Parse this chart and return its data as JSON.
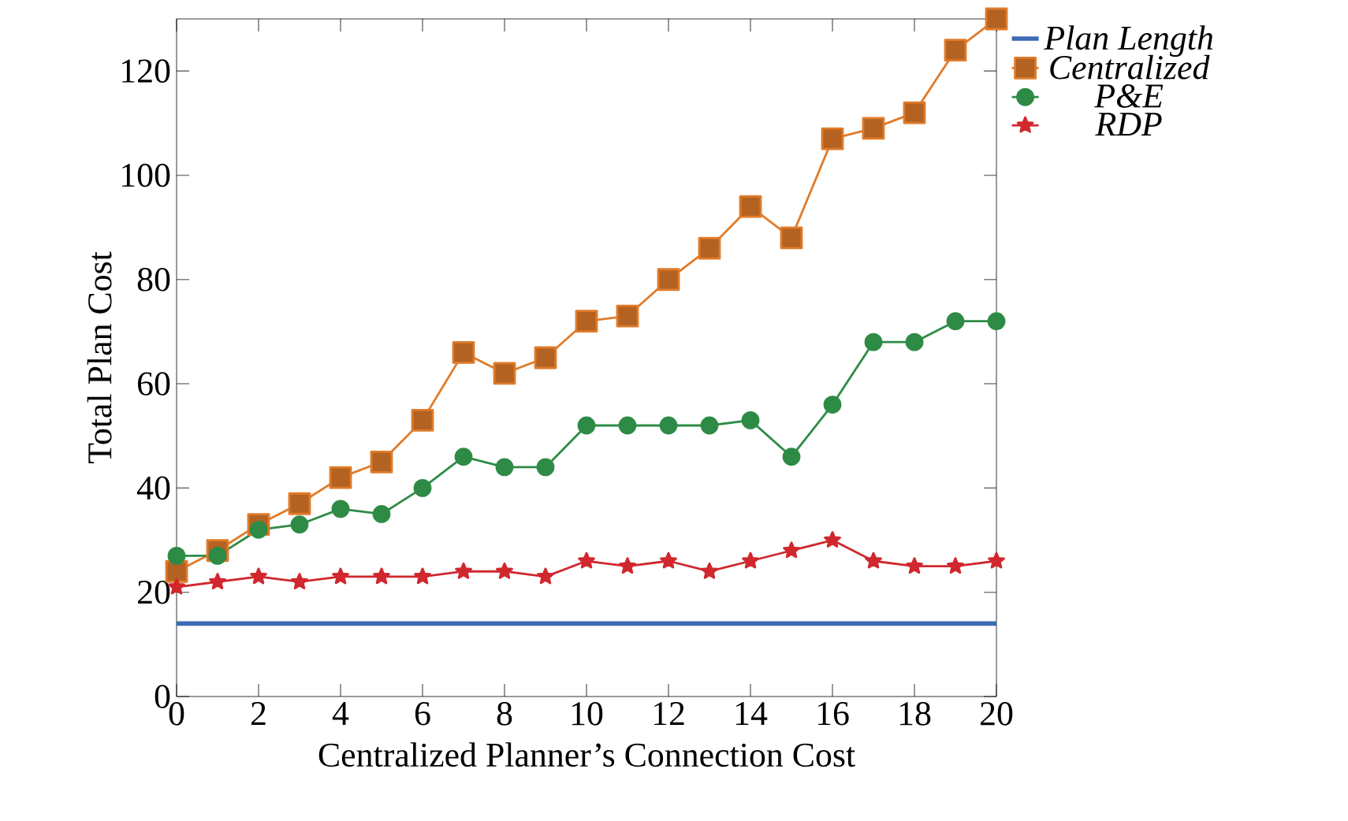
{
  "chart_data": {
    "type": "line",
    "xlabel": "Centralized Planner’s Connection Cost",
    "ylabel": "Total Plan Cost",
    "x": [
      0,
      1,
      2,
      3,
      4,
      5,
      6,
      7,
      8,
      9,
      10,
      11,
      12,
      13,
      14,
      15,
      16,
      17,
      18,
      19,
      20
    ],
    "series": [
      {
        "name": "Plan Length",
        "color": "#3c6ab3",
        "marker": "none",
        "values": [
          14,
          14,
          14,
          14,
          14,
          14,
          14,
          14,
          14,
          14,
          14,
          14,
          14,
          14,
          14,
          14,
          14,
          14,
          14,
          14,
          14
        ]
      },
      {
        "name": "Centralized",
        "color": "#e07b2a",
        "marker": "square",
        "values": [
          24,
          28,
          33,
          37,
          42,
          45,
          53,
          66,
          62,
          65,
          72,
          73,
          80,
          86,
          94,
          88,
          107,
          109,
          112,
          124,
          130
        ]
      },
      {
        "name": "P&E",
        "color": "#2e8b46",
        "marker": "circle",
        "values": [
          27,
          27,
          32,
          33,
          36,
          35,
          40,
          46,
          44,
          44,
          52,
          52,
          52,
          52,
          53,
          46,
          56,
          68,
          68,
          72,
          72
        ]
      },
      {
        "name": "RDP",
        "color": "#d0282e",
        "marker": "star",
        "values": [
          21,
          22,
          23,
          22,
          23,
          23,
          23,
          24,
          24,
          23,
          26,
          25,
          26,
          24,
          26,
          28,
          30,
          26,
          25,
          25,
          26
        ]
      }
    ],
    "xlim": [
      0,
      20
    ],
    "ylim": [
      0,
      130
    ],
    "xticks": [
      0,
      2,
      4,
      6,
      8,
      10,
      12,
      14,
      16,
      18,
      20
    ],
    "yticks": [
      0,
      20,
      40,
      60,
      80,
      100,
      120
    ],
    "grid": false,
    "legend": "top right",
    "line_style": "solid"
  }
}
